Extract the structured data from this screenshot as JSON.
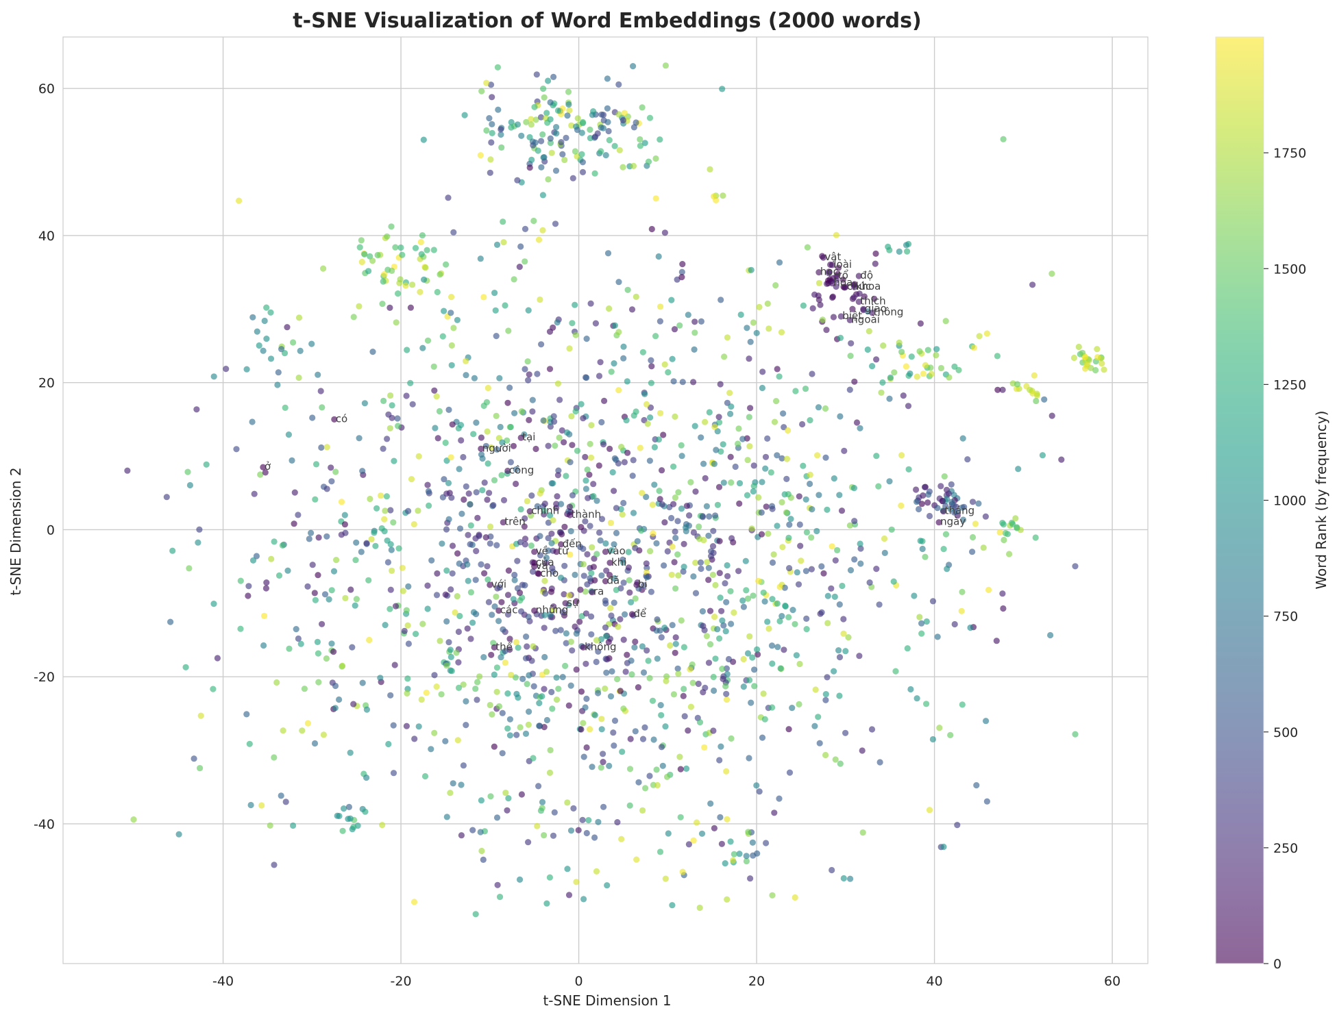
{
  "chart_data": {
    "type": "scatter",
    "title": "t-SNE Visualization of Word Embeddings (2000 words)",
    "xlabel": "t-SNE Dimension 1",
    "ylabel": "t-SNE Dimension 2",
    "colorbar_label": "Word Rank (by frequency)",
    "colormap": "viridis",
    "xlim": [
      -58,
      64
    ],
    "ylim": [
      -59,
      67
    ],
    "x_ticks": [
      -40,
      -20,
      0,
      20,
      40,
      60
    ],
    "y_ticks": [
      -40,
      -20,
      0,
      20,
      40,
      60
    ],
    "colorbar_ticks": [
      0,
      250,
      500,
      750,
      1000,
      1250,
      1500,
      1750
    ],
    "crange": [
      0,
      2000
    ],
    "grid": true,
    "total_points": 2000,
    "labeled_words": [
      {
        "word": "ở",
        "x": -35.5,
        "y": 8.5,
        "rank": 18
      },
      {
        "word": "có",
        "x": -27.5,
        "y": 15,
        "rank": 12
      },
      {
        "word": "người",
        "x": -11,
        "y": 11,
        "rank": 25
      },
      {
        "word": "tại",
        "x": -6.5,
        "y": 12.5,
        "rank": 40
      },
      {
        "word": "công",
        "x": -8,
        "y": 8,
        "rank": 60
      },
      {
        "word": "chính",
        "x": -5.5,
        "y": 2.5,
        "rank": 70
      },
      {
        "word": "thành",
        "x": -1,
        "y": 2,
        "rank": 65
      },
      {
        "word": "trên",
        "x": -8.5,
        "y": 1,
        "rank": 45
      },
      {
        "word": "đến",
        "x": -2,
        "y": -2,
        "rank": 30
      },
      {
        "word": "về",
        "x": -5,
        "y": -3,
        "rank": 22
      },
      {
        "word": "từ",
        "x": -2.5,
        "y": -3,
        "rank": 28
      },
      {
        "word": "của",
        "x": -5,
        "y": -4.5,
        "rank": 2
      },
      {
        "word": "và",
        "x": -5,
        "y": -5,
        "rank": 1
      },
      {
        "word": "cho",
        "x": -4.5,
        "y": -6,
        "rank": 10
      },
      {
        "word": "vào",
        "x": 3,
        "y": -3,
        "rank": 35
      },
      {
        "word": "khi",
        "x": 3.5,
        "y": -4.5,
        "rank": 32
      },
      {
        "word": "đã",
        "x": 3,
        "y": -7,
        "rank": 8
      },
      {
        "word": "bị",
        "x": 6.5,
        "y": -7.5,
        "rank": 50
      },
      {
        "word": "với",
        "x": -10,
        "y": -7.5,
        "rank": 15
      },
      {
        "word": "ra",
        "x": 1.5,
        "y": -8.5,
        "rank": 33
      },
      {
        "word": "sự",
        "x": -1.5,
        "y": -10,
        "rank": 55
      },
      {
        "word": "các",
        "x": -9,
        "y": -11,
        "rank": 6
      },
      {
        "word": "những",
        "x": -5,
        "y": -11,
        "rank": 9
      },
      {
        "word": "để",
        "x": 6,
        "y": -11.5,
        "rank": 14
      },
      {
        "word": "thể",
        "x": -9.5,
        "y": -16,
        "rank": 26
      },
      {
        "word": "không",
        "x": 0.5,
        "y": -16,
        "rank": 5
      },
      {
        "word": "vật",
        "x": 27.5,
        "y": 37,
        "rank": 80
      },
      {
        "word": "loài",
        "x": 28.5,
        "y": 36,
        "rank": 95
      },
      {
        "word": "học",
        "x": 27,
        "y": 35,
        "rank": 75
      },
      {
        "word": "tổ",
        "x": 29,
        "y": 34.5,
        "rank": 110
      },
      {
        "word": "độ",
        "x": 31.5,
        "y": 34.5,
        "rank": 105
      },
      {
        "word": "hóa",
        "x": 28.5,
        "y": 33.5,
        "rank": 120
      },
      {
        "word": "chức",
        "x": 30,
        "y": 33,
        "rank": 100
      },
      {
        "word": "khoa",
        "x": 31,
        "y": 33,
        "rank": 130
      },
      {
        "word": "thích",
        "x": 31.5,
        "y": 31,
        "rank": 140
      },
      {
        "word": "giao",
        "x": 32,
        "y": 30,
        "rank": 150
      },
      {
        "word": "thông",
        "x": 33,
        "y": 29.5,
        "rank": 115
      },
      {
        "word": "biệt",
        "x": 29.5,
        "y": 29,
        "rank": 160
      },
      {
        "word": "ngoài",
        "x": 30.5,
        "y": 28.5,
        "rank": 125
      },
      {
        "word": "tháng",
        "x": 41,
        "y": 2.5,
        "rank": 48
      },
      {
        "word": "ngày",
        "x": 40.5,
        "y": 1,
        "rank": 42
      }
    ],
    "clusters": [
      {
        "x": 0,
        "y": 54,
        "sx": 6,
        "sy": 3.2,
        "n": 150,
        "cmin": 300,
        "cmax": 2000
      },
      {
        "x": -20,
        "y": 37,
        "sx": 2.6,
        "sy": 2.2,
        "n": 45,
        "cmin": 1200,
        "cmax": 2000
      },
      {
        "x": 29.5,
        "y": 33,
        "sx": 1.8,
        "sy": 2.3,
        "n": 40,
        "cmin": 0,
        "cmax": 200
      },
      {
        "x": 38.5,
        "y": 22.5,
        "sx": 3,
        "sy": 1.7,
        "n": 35,
        "cmin": 1000,
        "cmax": 2000
      },
      {
        "x": 41,
        "y": 4.2,
        "sx": 1.5,
        "sy": 1.4,
        "n": 40,
        "cmin": 0,
        "cmax": 1000
      },
      {
        "x": 57.5,
        "y": 23.2,
        "sx": 1.1,
        "sy": 1.0,
        "n": 22,
        "cmin": 1400,
        "cmax": 2000
      },
      {
        "x": 50.5,
        "y": 19,
        "sx": 1.0,
        "sy": 0.9,
        "n": 12,
        "cmin": 1500,
        "cmax": 2000
      },
      {
        "x": 48.5,
        "y": 0.5,
        "sx": 0.6,
        "sy": 0.8,
        "n": 12,
        "cmin": 1300,
        "cmax": 1800
      },
      {
        "x": -2,
        "y": -5,
        "sx": 5.5,
        "sy": 5,
        "n": 70,
        "cmin": 0,
        "cmax": 500
      },
      {
        "x": -35,
        "y": 26.5,
        "sx": 2.2,
        "sy": 2,
        "n": 15,
        "cmin": 600,
        "cmax": 1800
      },
      {
        "x": -26,
        "y": -39,
        "sx": 1.5,
        "sy": 1.2,
        "n": 12,
        "cmin": 900,
        "cmax": 1600
      },
      {
        "x": 19,
        "y": -43,
        "sx": 1.3,
        "sy": 1.5,
        "n": 14,
        "cmin": 300,
        "cmax": 1700
      },
      {
        "x": 36,
        "y": 38.5,
        "sx": 1.2,
        "sy": 0.8,
        "n": 6,
        "cmin": 800,
        "cmax": 1600
      },
      {
        "x": 16,
        "y": 45.5,
        "sx": 0.6,
        "sy": 0.4,
        "n": 4,
        "cmin": 1500,
        "cmax": 2000
      }
    ]
  }
}
